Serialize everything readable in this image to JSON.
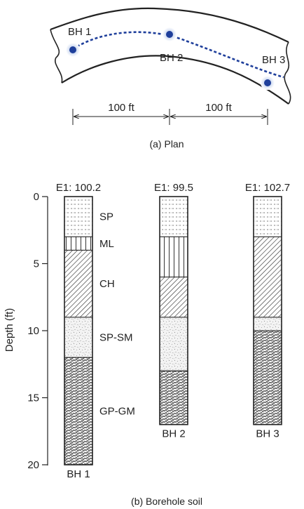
{
  "plan": {
    "boreholes": [
      {
        "label": "BH 1"
      },
      {
        "label": "BH 2"
      },
      {
        "label": "BH 3"
      }
    ],
    "spacing_labels": [
      "100 ft",
      "100 ft"
    ],
    "caption": "(a) Plan",
    "colors": {
      "marker": "#1f3f9b",
      "marker_halo": "#c9d6ef",
      "dashed_line": "#1f3f9b",
      "outline": "#222222"
    }
  },
  "section": {
    "y_axis": {
      "label": "Depth (ft)",
      "ticks": [
        "0",
        "5",
        "10",
        "15",
        "20"
      ],
      "range": [
        0,
        20
      ]
    },
    "caption": "(b) Borehole soil",
    "boreholes": [
      {
        "label": "BH 1",
        "elevation_label": "E1: 100.2",
        "total_depth": 20,
        "layers": [
          {
            "name": "SP",
            "top": 0,
            "bottom": 3,
            "pattern": "sp"
          },
          {
            "name": "ML",
            "top": 3,
            "bottom": 4,
            "pattern": "ml"
          },
          {
            "name": "CH",
            "top": 4,
            "bottom": 9,
            "pattern": "ch"
          },
          {
            "name": "SP-SM",
            "top": 9,
            "bottom": 12,
            "pattern": "spsm"
          },
          {
            "name": "GP-GM",
            "top": 12,
            "bottom": 20,
            "pattern": "gpgm"
          }
        ]
      },
      {
        "label": "BH 2",
        "elevation_label": "E1: 99.5",
        "total_depth": 17,
        "layers": [
          {
            "name": "SP",
            "top": 0,
            "bottom": 3,
            "pattern": "sp"
          },
          {
            "name": "ML",
            "top": 3,
            "bottom": 6,
            "pattern": "ml"
          },
          {
            "name": "CH",
            "top": 6,
            "bottom": 9,
            "pattern": "ch"
          },
          {
            "name": "SP-SM",
            "top": 9,
            "bottom": 13,
            "pattern": "spsm"
          },
          {
            "name": "GP-GM",
            "top": 13,
            "bottom": 17,
            "pattern": "gpgm"
          }
        ]
      },
      {
        "label": "BH 3",
        "elevation_label": "E1: 102.7",
        "total_depth": 17,
        "layers": [
          {
            "name": "SP",
            "top": 0,
            "bottom": 3,
            "pattern": "sp"
          },
          {
            "name": "CH",
            "top": 3,
            "bottom": 9,
            "pattern": "ch"
          },
          {
            "name": "SP-SM",
            "top": 9,
            "bottom": 10,
            "pattern": "spsm"
          },
          {
            "name": "GP-GM",
            "top": 10,
            "bottom": 17,
            "pattern": "gpgm"
          }
        ]
      }
    ]
  }
}
